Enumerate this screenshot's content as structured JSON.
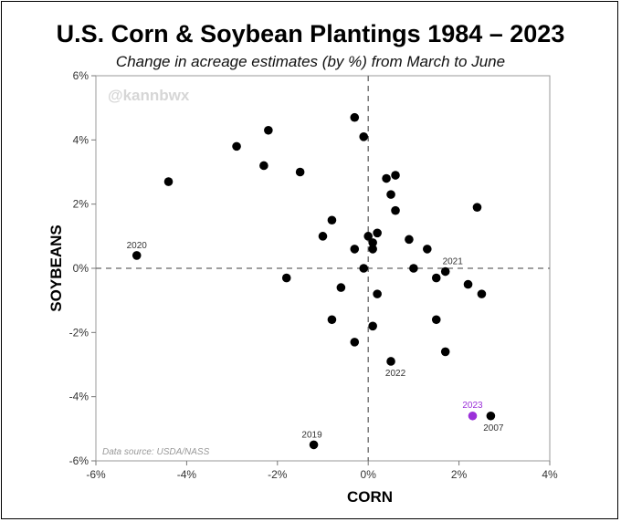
{
  "chart_data": {
    "type": "scatter",
    "title": "U.S. Corn & Soybean Plantings 1984 – 2023",
    "subtitle": "Change in acreage estimates (by %) from March to June",
    "xlabel": "CORN",
    "ylabel": "SOYBEANS",
    "xlim": [
      -6,
      4
    ],
    "ylim": [
      -6,
      6
    ],
    "x_ticks": [
      -6,
      -4,
      -2,
      0,
      2,
      4
    ],
    "y_ticks": [
      -6,
      -4,
      -2,
      0,
      2,
      4,
      6
    ],
    "x_tick_labels": [
      "-6%",
      "-4%",
      "-2%",
      "0%",
      "2%",
      "4%"
    ],
    "y_tick_labels": [
      "-6%",
      "-4%",
      "-2%",
      "0%",
      "2%",
      "4%",
      "6%"
    ],
    "watermark": "@kannbwx",
    "source_note": "Data source: USDA/NASS",
    "colors": {
      "point": "#000000",
      "highlight": "#9b30d9",
      "label": "#333333",
      "axis": "#666666"
    },
    "points": [
      {
        "x": -0.3,
        "y": 4.7
      },
      {
        "x": -2.2,
        "y": 4.3
      },
      {
        "x": -0.1,
        "y": 4.1
      },
      {
        "x": -2.9,
        "y": 3.8
      },
      {
        "x": -2.3,
        "y": 3.2
      },
      {
        "x": -1.5,
        "y": 3.0
      },
      {
        "x": 0.6,
        "y": 2.9
      },
      {
        "x": 0.4,
        "y": 2.8
      },
      {
        "x": -4.4,
        "y": 2.7
      },
      {
        "x": 0.5,
        "y": 2.3
      },
      {
        "x": 2.4,
        "y": 1.9
      },
      {
        "x": 0.6,
        "y": 1.8
      },
      {
        "x": -0.8,
        "y": 1.5
      },
      {
        "x": 0.2,
        "y": 1.1
      },
      {
        "x": -1.0,
        "y": 1.0
      },
      {
        "x": 0.0,
        "y": 1.0
      },
      {
        "x": 0.9,
        "y": 0.9
      },
      {
        "x": 0.1,
        "y": 0.8
      },
      {
        "x": -0.3,
        "y": 0.6
      },
      {
        "x": 0.1,
        "y": 0.6
      },
      {
        "x": 1.3,
        "y": 0.6
      },
      {
        "x": -5.1,
        "y": 0.4,
        "label": "2020"
      },
      {
        "x": -0.1,
        "y": 0.0
      },
      {
        "x": 1.0,
        "y": 0.0
      },
      {
        "x": 1.7,
        "y": -0.1,
        "label": "2021"
      },
      {
        "x": -1.8,
        "y": -0.3
      },
      {
        "x": 1.5,
        "y": -0.3
      },
      {
        "x": 2.2,
        "y": -0.5
      },
      {
        "x": -0.6,
        "y": -0.6
      },
      {
        "x": 2.5,
        "y": -0.8
      },
      {
        "x": 0.2,
        "y": -0.8
      },
      {
        "x": -0.8,
        "y": -1.6
      },
      {
        "x": 1.5,
        "y": -1.6
      },
      {
        "x": 0.1,
        "y": -1.8
      },
      {
        "x": -0.3,
        "y": -2.3
      },
      {
        "x": 1.7,
        "y": -2.6
      },
      {
        "x": 0.5,
        "y": -2.9,
        "label": "2022"
      },
      {
        "x": 2.7,
        "y": -4.6,
        "label": "2007"
      },
      {
        "x": 2.3,
        "y": -4.6,
        "label": "2023",
        "highlight": true
      },
      {
        "x": -1.2,
        "y": -5.5,
        "label": "2019"
      }
    ]
  }
}
